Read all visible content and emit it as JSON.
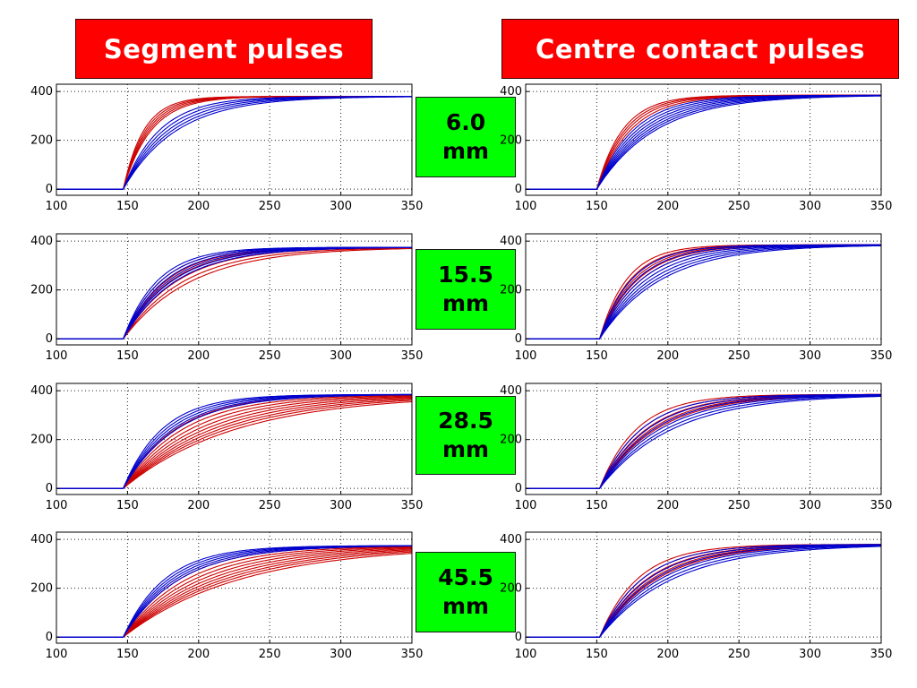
{
  "titles": {
    "left": "Segment pulses",
    "right": "Centre contact pulses"
  },
  "positions": [
    {
      "value": "6.0",
      "unit": "mm"
    },
    {
      "value": "15.5",
      "unit": "mm"
    },
    {
      "value": "28.5",
      "unit": "mm"
    },
    {
      "value": "45.5",
      "unit": "mm"
    }
  ],
  "colors": {
    "title_bg": "#ff0000",
    "position_bg": "#00ff00",
    "series_red": "#cc0000",
    "series_blue": "#0000cc"
  },
  "chart_data": [
    {
      "type": "line",
      "column": "Segment pulses",
      "row": "6.0 mm",
      "xlim": [
        100,
        350
      ],
      "ylim": [
        -25,
        430
      ],
      "xticks": [
        100,
        150,
        200,
        250,
        300,
        350
      ],
      "yticks": [
        0,
        200,
        400
      ],
      "grid": true,
      "baseline": 0,
      "plateau": 380,
      "start": 147,
      "series": [
        {
          "color": "red",
          "t90": [
            180,
            183,
            186,
            189,
            192
          ]
        },
        {
          "color": "blue",
          "t90": [
            205,
            212,
            219,
            226,
            233
          ]
        }
      ]
    },
    {
      "type": "line",
      "column": "Centre contact pulses",
      "row": "6.0 mm",
      "xlim": [
        100,
        350
      ],
      "ylim": [
        -25,
        430
      ],
      "xticks": [
        100,
        150,
        200,
        250,
        300,
        350
      ],
      "yticks": [
        0,
        200,
        400
      ],
      "grid": true,
      "baseline": 0,
      "plateau": 385,
      "start": 150,
      "series": [
        {
          "color": "red",
          "t90": [
            192,
            196,
            200,
            205
          ]
        },
        {
          "color": "blue",
          "t90": [
            210,
            216,
            222,
            228,
            234,
            240,
            246
          ]
        }
      ]
    },
    {
      "type": "line",
      "column": "Segment pulses",
      "row": "15.5 mm",
      "xlim": [
        100,
        350
      ],
      "ylim": [
        -25,
        430
      ],
      "xticks": [
        100,
        150,
        200,
        250,
        300,
        350
      ],
      "yticks": [
        0,
        200,
        400
      ],
      "grid": true,
      "baseline": 0,
      "plateau": 375,
      "start": 147,
      "series": [
        {
          "color": "red",
          "t90": [
            208,
            216,
            224,
            234,
            246,
            258
          ]
        },
        {
          "color": "blue",
          "t90": [
            202,
            208,
            214,
            220,
            226,
            232
          ]
        }
      ]
    },
    {
      "type": "line",
      "column": "Centre contact pulses",
      "row": "15.5 mm",
      "xlim": [
        100,
        350
      ],
      "ylim": [
        -25,
        430
      ],
      "xticks": [
        100,
        150,
        200,
        250,
        300,
        350
      ],
      "yticks": [
        0,
        200,
        400
      ],
      "grid": true,
      "baseline": 0,
      "plateau": 385,
      "start": 152,
      "series": [
        {
          "color": "red",
          "t90": [
            196,
            202,
            208,
            214,
            220
          ]
        },
        {
          "color": "blue",
          "t90": [
            204,
            212,
            220,
            228,
            236,
            244,
            252
          ]
        }
      ]
    },
    {
      "type": "line",
      "column": "Segment pulses",
      "row": "28.5 mm",
      "xlim": [
        100,
        350
      ],
      "ylim": [
        -25,
        430
      ],
      "xticks": [
        100,
        150,
        200,
        250,
        300,
        350
      ],
      "yticks": [
        0,
        200,
        400
      ],
      "grid": true,
      "baseline": 0,
      "plateau": 385,
      "start": 147,
      "series": [
        {
          "color": "red",
          "t90": [
            232,
            244,
            256,
            268,
            280,
            292,
            304,
            316,
            330
          ]
        },
        {
          "color": "blue",
          "t90": [
            210,
            216,
            222,
            228,
            234
          ]
        }
      ]
    },
    {
      "type": "line",
      "column": "Centre contact pulses",
      "row": "28.5 mm",
      "xlim": [
        100,
        350
      ],
      "ylim": [
        -25,
        430
      ],
      "xticks": [
        100,
        150,
        200,
        250,
        300,
        350
      ],
      "yticks": [
        0,
        200,
        400
      ],
      "grid": true,
      "baseline": 0,
      "plateau": 385,
      "start": 152,
      "series": [
        {
          "color": "red",
          "t90": [
            212,
            220,
            228,
            236,
            244
          ]
        },
        {
          "color": "blue",
          "t90": [
            220,
            230,
            240,
            250,
            260,
            270
          ]
        }
      ]
    },
    {
      "type": "line",
      "column": "Segment pulses",
      "row": "45.5 mm",
      "xlim": [
        100,
        350
      ],
      "ylim": [
        -25,
        430
      ],
      "xticks": [
        100,
        150,
        200,
        250,
        300,
        350
      ],
      "yticks": [
        0,
        200,
        400
      ],
      "grid": true,
      "baseline": 0,
      "plateau": 375,
      "start": 147,
      "series": [
        {
          "color": "red",
          "t90": [
            238,
            250,
            262,
            274,
            286,
            298,
            310,
            322,
            336
          ]
        },
        {
          "color": "blue",
          "t90": [
            214,
            220,
            226,
            232,
            238
          ]
        }
      ]
    },
    {
      "type": "line",
      "column": "Centre contact pulses",
      "row": "45.5 mm",
      "xlim": [
        100,
        350
      ],
      "ylim": [
        -25,
        430
      ],
      "xticks": [
        100,
        150,
        200,
        250,
        300,
        350
      ],
      "yticks": [
        0,
        200,
        400
      ],
      "grid": true,
      "baseline": 0,
      "plateau": 380,
      "start": 152,
      "series": [
        {
          "color": "red",
          "t90": [
            214,
            222,
            230,
            238,
            246
          ]
        },
        {
          "color": "blue",
          "t90": [
            222,
            232,
            242,
            252,
            262,
            272
          ]
        }
      ]
    }
  ]
}
